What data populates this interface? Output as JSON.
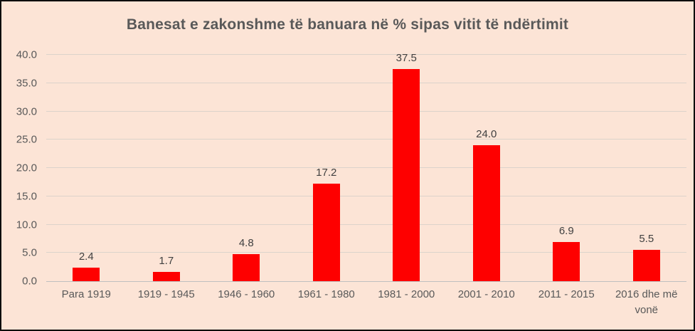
{
  "chart": {
    "title": "Banesat e zakonshme të banuara në % sipas vitit të ndërtimit"
  },
  "chart_data": {
    "type": "bar",
    "title": "Banesat e zakonshme të banuara në % sipas vitit të ndërtimit",
    "categories": [
      "Para 1919",
      "1919 - 1945",
      "1946 - 1960",
      "1961 - 1980",
      "1981 - 2000",
      "2001 - 2010",
      "2011 - 2015",
      "2016 dhe më vonë"
    ],
    "values": [
      2.4,
      1.7,
      4.8,
      17.2,
      37.5,
      24.0,
      6.9,
      5.5
    ],
    "data_labels": [
      "2.4",
      "1.7",
      "4.8",
      "17.2",
      "37.5",
      "24.0",
      "6.9",
      "5.5"
    ],
    "xlabel": "",
    "ylabel": "",
    "ylim": [
      0,
      40
    ],
    "ytick_interval": 5,
    "ytick_labels": [
      "0.0",
      "5.0",
      "10.0",
      "15.0",
      "20.0",
      "25.0",
      "30.0",
      "35.0",
      "40.0"
    ],
    "grid": true,
    "legend_position": "none",
    "colors": {
      "bar": "#FE0000",
      "background": "#FCE4D6",
      "title_text": "#595959",
      "axis_text": "#595959",
      "data_label_text": "#404040",
      "gridline": "#DCD3CB",
      "axis_line": "#BFBFBF",
      "frame_border": "#0d0d0d"
    }
  }
}
